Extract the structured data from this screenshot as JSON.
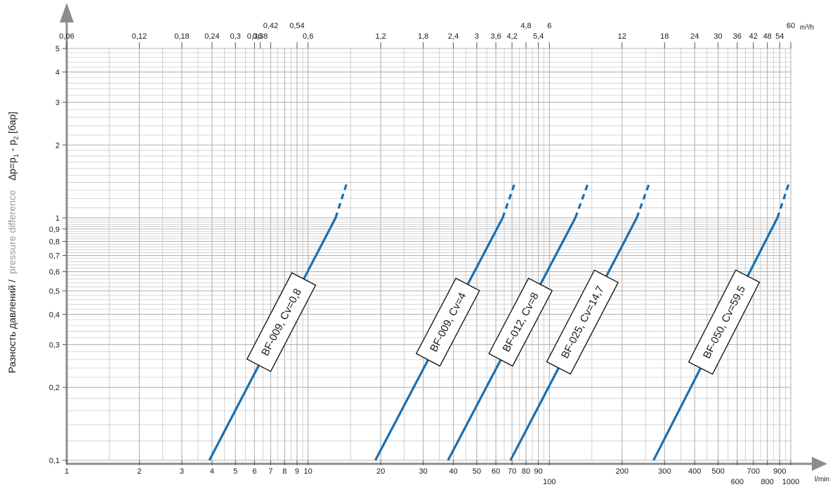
{
  "chart_data": {
    "type": "line",
    "x_scale": "log",
    "y_scale": "log",
    "grid": true,
    "xlim": [
      1,
      1000
    ],
    "ylim": [
      0.1,
      5
    ],
    "x_top_lim": [
      0.06,
      60
    ],
    "xlabel_unit": "l/min",
    "x_top_unit": "m³/h",
    "ylabel_ru": "Разность давлений /",
    "ylabel_en": "pressure difference",
    "ylabel_formula": {
      "prefix": "∆p=p",
      "sub1": "1",
      "mid": " - p",
      "sub2": "2",
      "suffix": " [бар]"
    },
    "x_ticks": [
      {
        "value": 1,
        "label": "1",
        "row": 1
      },
      {
        "value": 2,
        "label": "2",
        "row": 1
      },
      {
        "value": 3,
        "label": "3",
        "row": 1
      },
      {
        "value": 4,
        "label": "4",
        "row": 1
      },
      {
        "value": 5,
        "label": "5",
        "row": 1
      },
      {
        "value": 6,
        "label": "6",
        "row": 1
      },
      {
        "value": 7,
        "label": "7",
        "row": 1
      },
      {
        "value": 8,
        "label": "8",
        "row": 1
      },
      {
        "value": 9,
        "label": "9",
        "row": 1
      },
      {
        "value": 10,
        "label": "10",
        "row": 1
      },
      {
        "value": 20,
        "label": "20",
        "row": 1
      },
      {
        "value": 30,
        "label": "30",
        "row": 1
      },
      {
        "value": 40,
        "label": "40",
        "row": 1
      },
      {
        "value": 50,
        "label": "50",
        "row": 1
      },
      {
        "value": 60,
        "label": "60",
        "row": 1
      },
      {
        "value": 70,
        "label": "70",
        "row": 1
      },
      {
        "value": 80,
        "label": "80",
        "row": 1
      },
      {
        "value": 90,
        "label": "90",
        "row": 1
      },
      {
        "value": 100,
        "label": "100",
        "row": 2
      },
      {
        "value": 200,
        "label": "200",
        "row": 1
      },
      {
        "value": 300,
        "label": "300",
        "row": 1
      },
      {
        "value": 400,
        "label": "400",
        "row": 1
      },
      {
        "value": 500,
        "label": "500",
        "row": 1
      },
      {
        "value": 600,
        "label": "600",
        "row": 2
      },
      {
        "value": 700,
        "label": "700",
        "row": 1
      },
      {
        "value": 800,
        "label": "800",
        "row": 2
      },
      {
        "value": 900,
        "label": "900",
        "row": 1
      },
      {
        "value": 1000,
        "label": "1000",
        "row": 2
      }
    ],
    "x_top_ticks": [
      {
        "value": 0.06,
        "label": "0,06",
        "row": 1
      },
      {
        "value": 0.12,
        "label": "0,12",
        "row": 1
      },
      {
        "value": 0.18,
        "label": "0,18",
        "row": 1
      },
      {
        "value": 0.24,
        "label": "0,24",
        "row": 1
      },
      {
        "value": 0.3,
        "label": "0,3",
        "row": 1
      },
      {
        "value": 0.36,
        "label": "0,36",
        "row": 1
      },
      {
        "value": 0.38,
        "label": "0,38",
        "row": 1
      },
      {
        "value": 0.42,
        "label": "0,42",
        "row": 2
      },
      {
        "value": 0.54,
        "label": "0,54",
        "row": 2
      },
      {
        "value": 0.6,
        "label": "0,6",
        "row": 1
      },
      {
        "value": 1.2,
        "label": "1,2",
        "row": 1
      },
      {
        "value": 1.8,
        "label": "1,8",
        "row": 1
      },
      {
        "value": 2.4,
        "label": "2,4",
        "row": 1
      },
      {
        "value": 3,
        "label": "3",
        "row": 1
      },
      {
        "value": 3.6,
        "label": "3,6",
        "row": 1
      },
      {
        "value": 4.2,
        "label": "4,2",
        "row": 1
      },
      {
        "value": 4.8,
        "label": "4,8",
        "row": 2
      },
      {
        "value": 5.4,
        "label": "5,4",
        "row": 1
      },
      {
        "value": 6,
        "label": "6",
        "row": 2
      },
      {
        "value": 12,
        "label": "12",
        "row": 1
      },
      {
        "value": 18,
        "label": "18",
        "row": 1
      },
      {
        "value": 24,
        "label": "24",
        "row": 1
      },
      {
        "value": 30,
        "label": "30",
        "row": 1
      },
      {
        "value": 36,
        "label": "36",
        "row": 1
      },
      {
        "value": 42,
        "label": "42",
        "row": 1
      },
      {
        "value": 48,
        "label": "48",
        "row": 1
      },
      {
        "value": 54,
        "label": "54",
        "row": 1
      },
      {
        "value": 60,
        "label": "60",
        "row": 2
      }
    ],
    "y_ticks": [
      {
        "value": 0.1,
        "label": "0,1"
      },
      {
        "value": 0.2,
        "label": "0,2"
      },
      {
        "value": 0.3,
        "label": "0,3"
      },
      {
        "value": 0.4,
        "label": "0,4"
      },
      {
        "value": 0.5,
        "label": "0,5"
      },
      {
        "value": 0.6,
        "label": "0,6"
      },
      {
        "value": 0.7,
        "label": "0,7"
      },
      {
        "value": 0.8,
        "label": "0,8"
      },
      {
        "value": 0.9,
        "label": "0,9"
      },
      {
        "value": 1,
        "label": "1"
      },
      {
        "value": 2,
        "label": "2"
      },
      {
        "value": 3,
        "label": "3"
      },
      {
        "value": 4,
        "label": "4"
      },
      {
        "value": 5,
        "label": "5"
      }
    ],
    "series": [
      {
        "name": "BF-009, Cv=0,8",
        "points": [
          [
            3.9,
            0.1
          ],
          [
            13.0,
            1.0
          ]
        ],
        "dashed_to": [
          14.5,
          1.4
        ]
      },
      {
        "name": "BF-009, Cv=4",
        "points": [
          [
            19.0,
            0.1
          ],
          [
            64.0,
            1.0
          ]
        ],
        "dashed_to": [
          72.0,
          1.4
        ]
      },
      {
        "name": "BF-012, Cv=8",
        "points": [
          [
            38.0,
            0.1
          ],
          [
            128.0,
            1.0
          ]
        ],
        "dashed_to": [
          145.0,
          1.4
        ]
      },
      {
        "name": "BF-025, Cv=14,7",
        "points": [
          [
            69.0,
            0.1
          ],
          [
            230.0,
            1.0
          ]
        ],
        "dashed_to": [
          260.0,
          1.4
        ]
      },
      {
        "name": "BF-050, Cv=59,5",
        "points": [
          [
            270.0,
            0.1
          ],
          [
            880.0,
            1.0
          ]
        ],
        "dashed_to": [
          985.0,
          1.4
        ]
      }
    ],
    "line_color": "#1a6fb0",
    "grid_color": "#b4b4b4",
    "axis_color": "#8c8c8c"
  }
}
